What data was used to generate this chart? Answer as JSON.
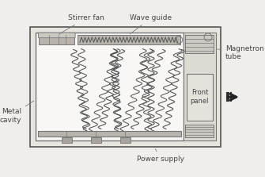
{
  "bg_color": "#f0eeea",
  "labels": {
    "stirrer_fan": "Stirrer fan",
    "wave_guide": "Wave guide",
    "metal_cavity": "Metal\ncavity",
    "front_panel": "Front\npanel",
    "magnetron_tube": "Magnetron\ntube",
    "power_supply": "Power supply"
  },
  "line_color": "#777777",
  "dark_line": "#555555",
  "cavity_fill": "#f8f7f5",
  "outer_fill": "#e8e5e0",
  "side_fill": "#dddad4",
  "strip_fill": "#c8c5bf",
  "text_color": "#444444",
  "font_size": 6.5
}
